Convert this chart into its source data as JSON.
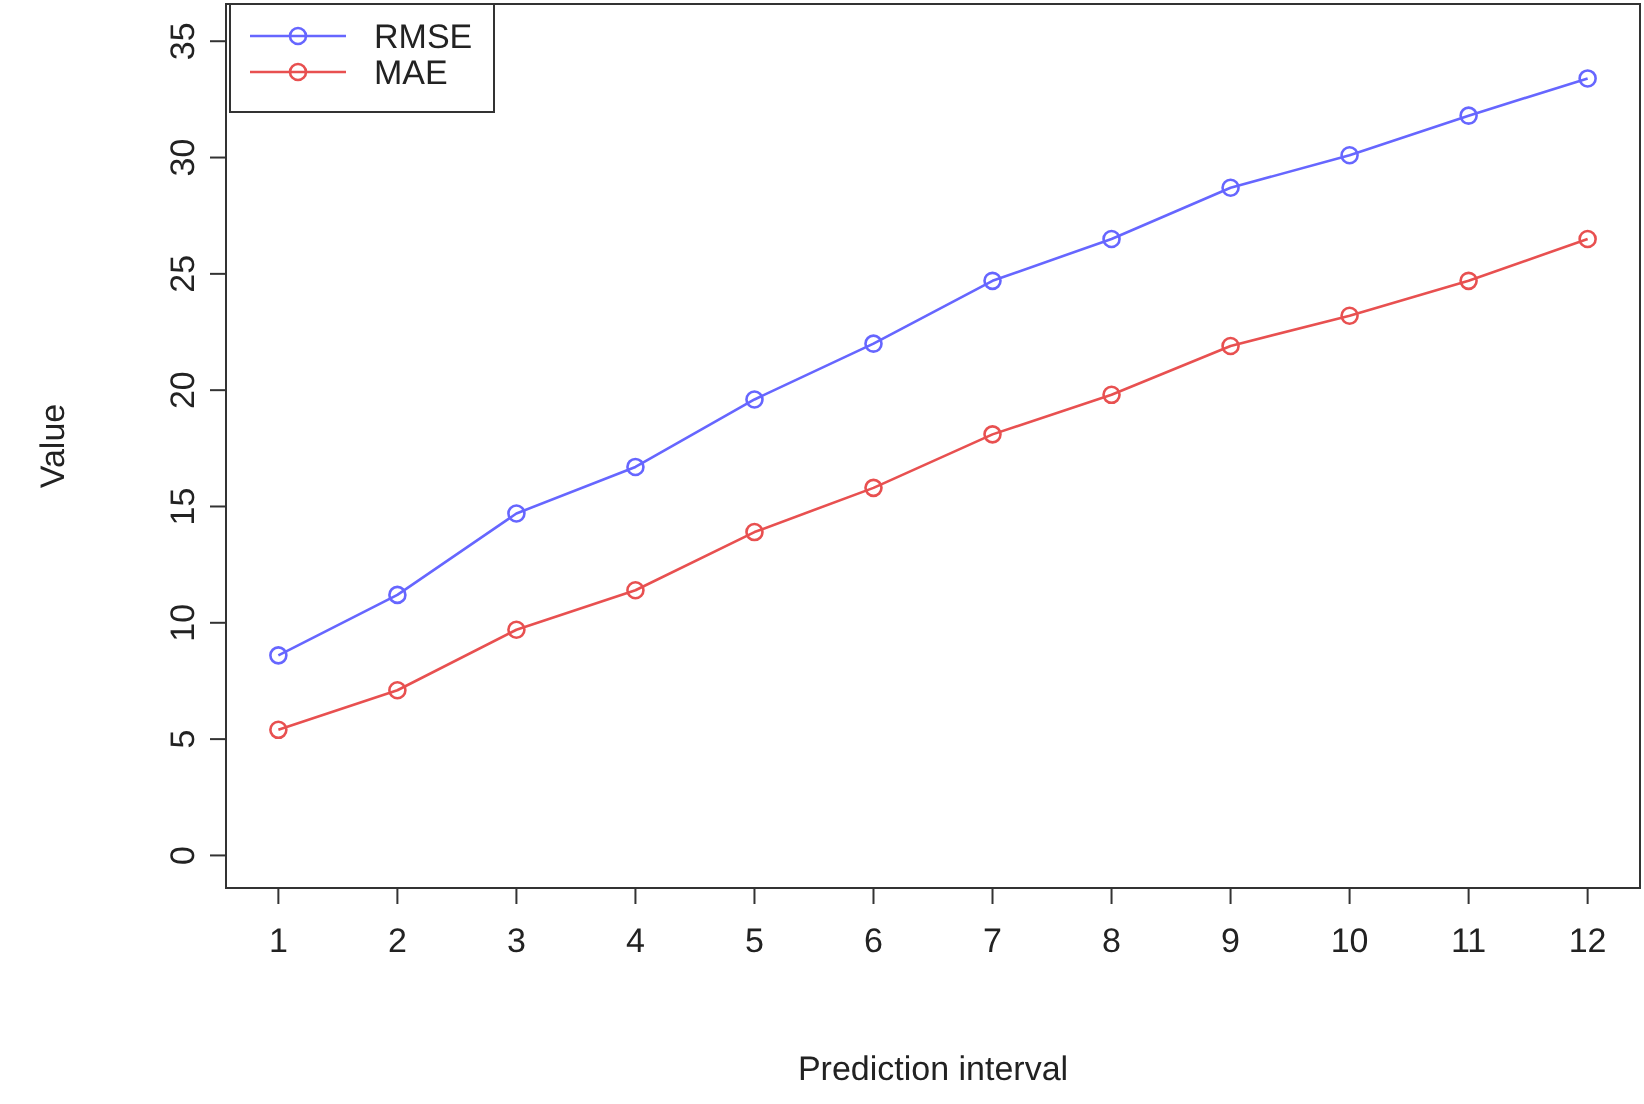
{
  "chart_data": {
    "type": "line",
    "xlabel": "Prediction interval",
    "ylabel": "Value",
    "x": [
      1,
      2,
      3,
      4,
      5,
      6,
      7,
      8,
      9,
      10,
      11,
      12
    ],
    "xlim": [
      0.56,
      12.44
    ],
    "xticks": [
      1,
      2,
      3,
      4,
      5,
      6,
      7,
      8,
      9,
      10,
      11,
      12
    ],
    "ylim": [
      -1.4,
      36.6
    ],
    "yticks": [
      0,
      5,
      10,
      15,
      20,
      25,
      30,
      35
    ],
    "series": [
      {
        "name": "RMSE",
        "color": "#6666ff",
        "values": [
          8.6,
          11.2,
          14.7,
          16.7,
          19.6,
          22.0,
          24.7,
          26.5,
          28.7,
          30.1,
          31.8,
          33.4
        ]
      },
      {
        "name": "MAE",
        "color": "#e85050",
        "values": [
          5.4,
          7.1,
          9.7,
          11.4,
          13.9,
          15.8,
          18.1,
          19.8,
          21.9,
          23.2,
          24.7,
          26.5
        ]
      }
    ],
    "marker": "circle",
    "line_style": "solid",
    "legend": "top left",
    "grid": false
  }
}
